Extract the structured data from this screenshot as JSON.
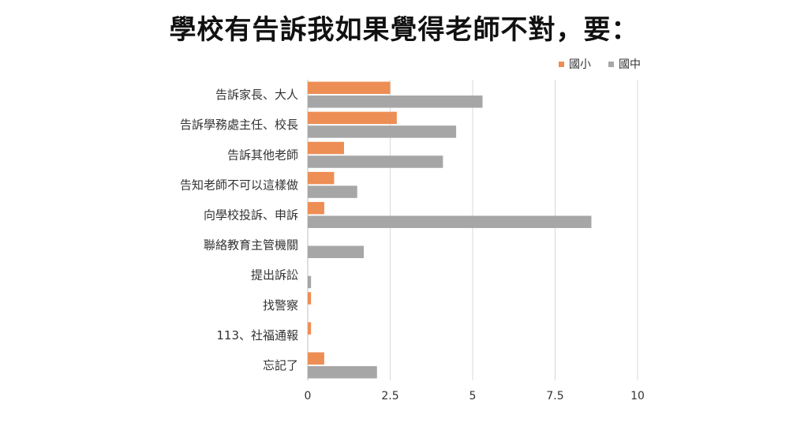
{
  "title": "學校有告訴我如果覺得老師不對，要：",
  "chart_data": {
    "type": "bar",
    "orientation": "horizontal",
    "title": "學校有告訴我如果覺得老師不對，要：",
    "xlabel": "",
    "ylabel": "",
    "xlim": [
      0,
      10
    ],
    "xticks": [
      0,
      2.5,
      5,
      7.5,
      10
    ],
    "xtick_labels": [
      "0",
      "2.5",
      "5",
      "7.5",
      "10"
    ],
    "grid": "vertical",
    "legend_position": "top-right",
    "categories": [
      "告訴家長、大人",
      "告訴學務處主任、校長",
      "告訴其他老師",
      "告知老師不可以這樣做",
      "向學校投訴、申訴",
      "聯絡教育主管機關",
      "提出訴訟",
      "找警察",
      "113、社福通報",
      "忘記了"
    ],
    "series": [
      {
        "name": "國小",
        "color": "#ED8E55",
        "values": [
          2.5,
          2.7,
          1.1,
          0.8,
          0.5,
          0,
          0,
          0.1,
          0.1,
          0.5
        ]
      },
      {
        "name": "國中",
        "color": "#A6A6A6",
        "values": [
          5.3,
          4.5,
          4.1,
          1.5,
          8.6,
          1.7,
          0.1,
          0,
          0,
          2.1
        ]
      }
    ]
  }
}
